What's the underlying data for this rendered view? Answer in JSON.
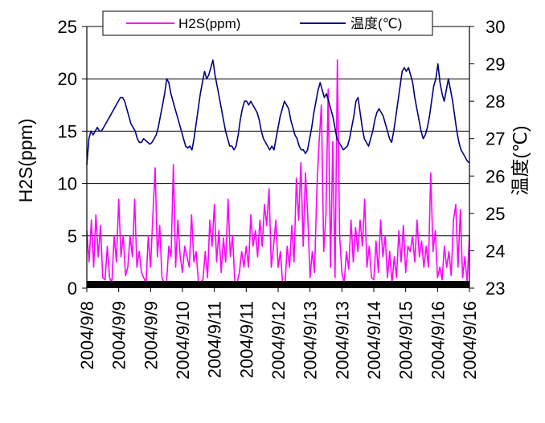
{
  "chart_data": {
    "type": "line",
    "title": "",
    "xlabel": "",
    "ylabel_left": "H2S(ppm)",
    "ylabel_right": "温度(℃)",
    "ylim_left": [
      0,
      25
    ],
    "ylim_right": [
      23,
      30
    ],
    "yticks_left": [
      "0",
      "5",
      "10",
      "15",
      "20",
      "25"
    ],
    "yticks_right": [
      "23",
      "24",
      "25",
      "26",
      "27",
      "28",
      "29",
      "30"
    ],
    "x_tick_labels": [
      "2004/9/8",
      "2004/9/9",
      "2004/9/9",
      "2004/9/10",
      "2004/9/11",
      "2004/9/11",
      "2004/9/12",
      "2004/9/13",
      "2004/9/13",
      "2004/9/14",
      "2004/9/15",
      "2004/9/16",
      "2004/9/16"
    ],
    "grid": "horizontal",
    "legend": {
      "placement": "top",
      "entries": [
        "H2S(ppm)",
        "温度(℃)"
      ]
    },
    "series": [
      {
        "name": "H2S(ppm)",
        "axis": "left",
        "color": "#ff00ff",
        "values": [
          5.5,
          2.5,
          6.5,
          2,
          7,
          3,
          6,
          1,
          0.8,
          4,
          1,
          0.5,
          5,
          2.5,
          8.5,
          3,
          5,
          1.2,
          2,
          5,
          3,
          8.5,
          2,
          3.5,
          1.5,
          1,
          0.5,
          5,
          2,
          7,
          11.5,
          3,
          6,
          1,
          0.5,
          0.5,
          4,
          3,
          11.8,
          2,
          6.5,
          3,
          1.5,
          4,
          3,
          2,
          7,
          2.5,
          3.5,
          0.6,
          0.6,
          0.8,
          3.5,
          1,
          6.5,
          4,
          8,
          2.5,
          5.5,
          1.5,
          4.8,
          2.5,
          8.5,
          3,
          5,
          0.5,
          0.5,
          1.5,
          3.5,
          2,
          4,
          2,
          7,
          4,
          5.5,
          3,
          6.5,
          4,
          8,
          6,
          9.5,
          2,
          4,
          6.5,
          2,
          3.5,
          0.3,
          0.3,
          4,
          2,
          6,
          2.5,
          10.5,
          6.5,
          12,
          4,
          11,
          7,
          1,
          3.5,
          1.5,
          9.5,
          14,
          17.5,
          3.5,
          7,
          19,
          2,
          14,
          1,
          21.8,
          5,
          1.5,
          0.5,
          3.5,
          1.8,
          6.5,
          2.5,
          5.8,
          3.5,
          6.5,
          4,
          8.5,
          2,
          4,
          1,
          0.8,
          4.5,
          1.5,
          6.5,
          3,
          5,
          1,
          3.5,
          0.5,
          3,
          1,
          5.5,
          2.5,
          6,
          1.5,
          4,
          3.5,
          5,
          2.5,
          6.5,
          3,
          4.5,
          2,
          4,
          2,
          11,
          3.5,
          5.5,
          1,
          2,
          0.8,
          4,
          2,
          3.5,
          1.2,
          6.5,
          8,
          2,
          7.5,
          1,
          3,
          0.6,
          5
        ]
      },
      {
        "name": "温度(℃)",
        "axis": "right",
        "color": "#000080",
        "values": [
          26.3,
          27,
          27.2,
          27.1,
          27.2,
          27.3,
          27.2,
          27.2,
          27.3,
          27.4,
          27.5,
          27.6,
          27.7,
          27.8,
          27.9,
          28,
          28.1,
          28.1,
          28,
          27.8,
          27.6,
          27.4,
          27.3,
          27.2,
          27,
          26.9,
          26.9,
          27,
          26.95,
          26.9,
          26.85,
          26.9,
          27,
          27.1,
          27.3,
          27.6,
          27.9,
          28.2,
          28.6,
          28.5,
          28.2,
          28,
          27.8,
          27.6,
          27.4,
          27.2,
          27,
          26.8,
          26.75,
          26.8,
          26.7,
          27,
          27.4,
          27.8,
          28.2,
          28.5,
          28.8,
          28.6,
          28.7,
          28.9,
          29.1,
          28.7,
          28.4,
          28.1,
          27.8,
          27.5,
          27.2,
          27,
          26.8,
          26.8,
          26.7,
          26.8,
          27.1,
          27.5,
          27.8,
          28,
          28,
          27.9,
          28,
          27.9,
          27.8,
          27.7,
          27.5,
          27.2,
          27,
          26.9,
          26.8,
          26.7,
          26.8,
          26.7,
          27,
          27.3,
          27.6,
          27.8,
          28,
          27.9,
          27.8,
          27.5,
          27.3,
          27.1,
          27,
          26.8,
          26.7,
          26.7,
          26.6,
          26.7,
          27,
          27.3,
          27.7,
          28,
          28.3,
          28.5,
          28.3,
          28.1,
          28.2,
          28,
          27.8,
          27.6,
          27.3,
          27,
          26.9,
          26.8,
          26.7,
          26.75,
          26.8,
          27,
          27.3,
          27.6,
          28,
          28.1,
          27.7,
          27.3,
          27,
          26.9,
          26.8,
          27,
          27.2,
          27.5,
          27.7,
          27.8,
          27.7,
          27.6,
          27.4,
          27.2,
          27,
          26.9,
          27.2,
          27.6,
          28,
          28.4,
          28.8,
          28.9,
          28.8,
          28.9,
          28.7,
          28.5,
          28.1,
          27.8,
          27.5,
          27.2,
          27,
          27.1,
          27.3,
          27.6,
          28,
          28.4,
          28.6,
          29,
          28.5,
          28.2,
          28,
          28.3,
          28.6,
          28.3,
          28,
          27.6,
          27.2,
          26.9,
          26.7,
          26.6,
          26.5,
          26.4,
          26.35
        ]
      }
    ]
  }
}
